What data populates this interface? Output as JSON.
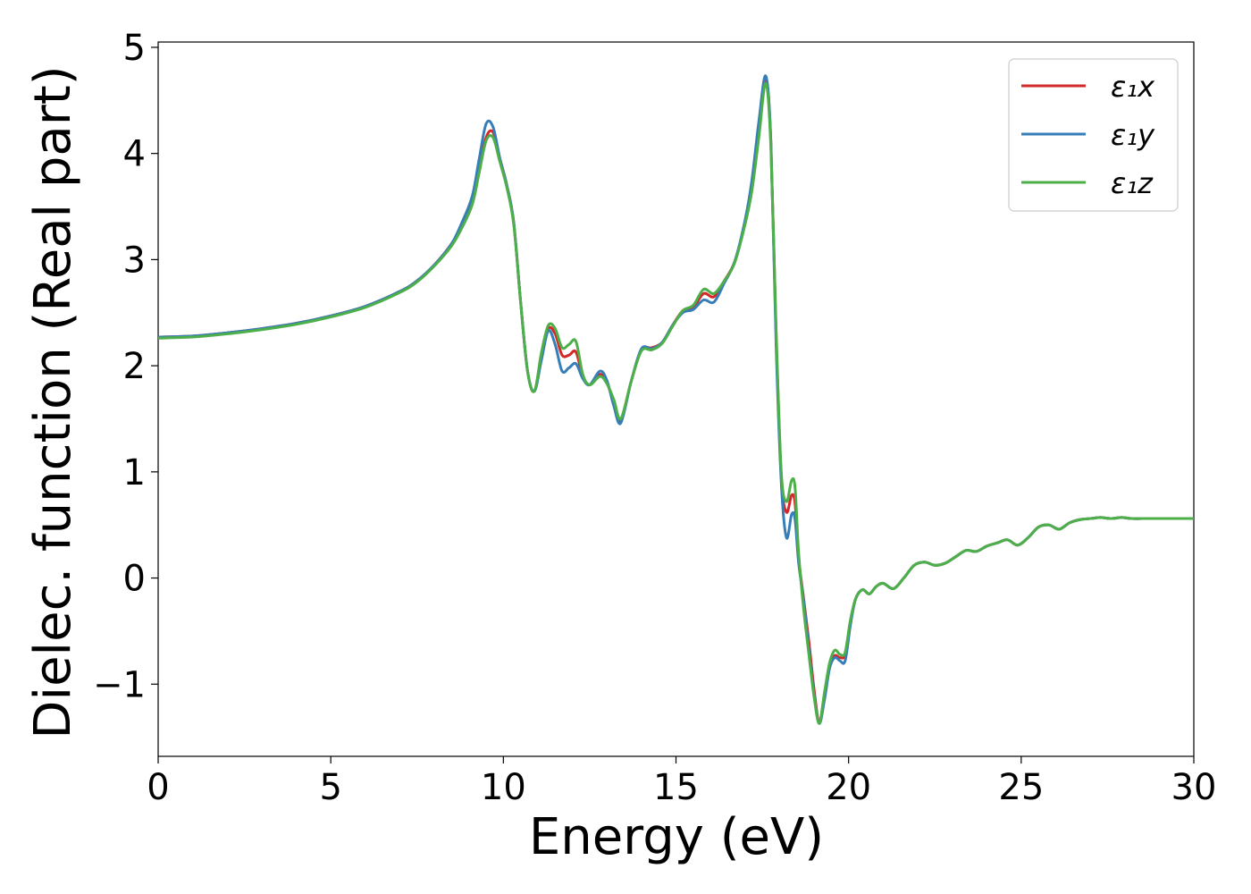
{
  "chart_data": {
    "type": "line",
    "title": "",
    "xlabel": "Energy (eV)",
    "ylabel": "Dielec. function (Real part)",
    "xlim": [
      0,
      30
    ],
    "ylim": [
      -1.68,
      5.05
    ],
    "xticks": [
      0,
      5,
      10,
      15,
      20,
      25,
      30
    ],
    "xtick_labels": [
      "0",
      "5",
      "10",
      "15",
      "20",
      "25",
      "30"
    ],
    "yticks": [
      -1,
      0,
      1,
      2,
      3,
      4,
      5
    ],
    "ytick_labels": [
      "−1",
      "0",
      "1",
      "2",
      "3",
      "4",
      "5"
    ],
    "grid": false,
    "legend_position": "top-right",
    "x": [
      0,
      1,
      2,
      3,
      4,
      5,
      6,
      7,
      7.5,
      8,
      8.5,
      8.8,
      9.1,
      9.3,
      9.5,
      9.7,
      9.9,
      10.1,
      10.3,
      10.5,
      10.7,
      10.9,
      11.1,
      11.3,
      11.5,
      11.7,
      11.9,
      12.1,
      12.3,
      12.5,
      12.8,
      13.0,
      13.2,
      13.4,
      13.7,
      14.0,
      14.3,
      14.6,
      14.9,
      15.2,
      15.5,
      15.8,
      16.1,
      16.4,
      16.7,
      17.0,
      17.2,
      17.4,
      17.6,
      17.75,
      17.9,
      18.05,
      18.2,
      18.35,
      18.45,
      18.55,
      18.7,
      18.85,
      19.0,
      19.15,
      19.3,
      19.45,
      19.6,
      19.75,
      19.9,
      20.05,
      20.2,
      20.4,
      20.6,
      20.8,
      21.0,
      21.3,
      21.6,
      21.9,
      22.2,
      22.5,
      22.8,
      23.1,
      23.4,
      23.7,
      24.0,
      24.3,
      24.6,
      24.9,
      25.2,
      25.5,
      25.8,
      26.1,
      26.4,
      26.7,
      27.0,
      27.3,
      27.6,
      27.9,
      28.2,
      28.5,
      28.8,
      29.1,
      29.4,
      29.7,
      30.0
    ],
    "series": [
      {
        "name": "ε₁x",
        "color": "#d62728",
        "values": [
          2.27,
          2.28,
          2.31,
          2.35,
          2.4,
          2.47,
          2.56,
          2.7,
          2.8,
          2.95,
          3.15,
          3.32,
          3.55,
          3.85,
          4.15,
          4.2,
          3.95,
          3.7,
          3.35,
          2.6,
          1.95,
          1.76,
          2.1,
          2.35,
          2.3,
          2.1,
          2.1,
          2.13,
          1.9,
          1.82,
          1.92,
          1.84,
          1.65,
          1.48,
          1.85,
          2.15,
          2.17,
          2.22,
          2.38,
          2.52,
          2.55,
          2.68,
          2.65,
          2.8,
          2.98,
          3.35,
          3.7,
          4.2,
          4.7,
          4.1,
          2.3,
          0.95,
          0.62,
          0.78,
          0.7,
          0.2,
          -0.2,
          -0.6,
          -1.05,
          -1.36,
          -1.1,
          -0.82,
          -0.73,
          -0.75,
          -0.72,
          -0.42,
          -0.2,
          -0.11,
          -0.15,
          -0.08,
          -0.05,
          -0.1,
          0.0,
          0.12,
          0.15,
          0.12,
          0.14,
          0.2,
          0.26,
          0.25,
          0.3,
          0.33,
          0.36,
          0.31,
          0.38,
          0.48,
          0.5,
          0.46,
          0.52,
          0.55,
          0.56,
          0.57,
          0.56,
          0.57,
          0.56,
          0.56,
          0.56,
          0.56,
          0.56,
          0.56,
          0.56
        ]
      },
      {
        "name": "ε₁y",
        "color": "#377eb8",
        "values": [
          2.27,
          2.28,
          2.31,
          2.35,
          2.4,
          2.47,
          2.56,
          2.7,
          2.8,
          2.95,
          3.15,
          3.35,
          3.6,
          3.95,
          4.28,
          4.25,
          3.95,
          3.7,
          3.35,
          2.6,
          1.95,
          1.76,
          2.05,
          2.33,
          2.2,
          1.95,
          1.98,
          2.02,
          1.88,
          1.82,
          1.95,
          1.86,
          1.62,
          1.46,
          1.85,
          2.16,
          2.16,
          2.22,
          2.38,
          2.5,
          2.53,
          2.62,
          2.6,
          2.78,
          2.98,
          3.37,
          3.75,
          4.3,
          4.73,
          4.1,
          2.2,
          0.9,
          0.38,
          0.6,
          0.55,
          0.15,
          -0.22,
          -0.68,
          -1.1,
          -1.37,
          -1.15,
          -0.85,
          -0.75,
          -0.78,
          -0.78,
          -0.45,
          -0.2,
          -0.11,
          -0.15,
          -0.08,
          -0.05,
          -0.1,
          0.0,
          0.12,
          0.15,
          0.12,
          0.14,
          0.2,
          0.26,
          0.25,
          0.3,
          0.33,
          0.36,
          0.31,
          0.38,
          0.48,
          0.5,
          0.46,
          0.52,
          0.55,
          0.56,
          0.57,
          0.56,
          0.57,
          0.56,
          0.56,
          0.56,
          0.56,
          0.56,
          0.56,
          0.56
        ]
      },
      {
        "name": "ε₁z",
        "color": "#4daf4a",
        "values": [
          2.26,
          2.27,
          2.3,
          2.34,
          2.39,
          2.46,
          2.55,
          2.69,
          2.79,
          2.94,
          3.13,
          3.3,
          3.52,
          3.82,
          4.12,
          4.15,
          3.92,
          3.68,
          3.33,
          2.6,
          1.95,
          1.76,
          2.12,
          2.38,
          2.35,
          2.17,
          2.2,
          2.23,
          1.92,
          1.82,
          1.9,
          1.83,
          1.68,
          1.5,
          1.85,
          2.14,
          2.15,
          2.21,
          2.37,
          2.52,
          2.57,
          2.72,
          2.68,
          2.8,
          2.97,
          3.33,
          3.65,
          4.15,
          4.66,
          4.05,
          2.35,
          1.0,
          0.72,
          0.92,
          0.85,
          0.25,
          -0.3,
          -0.72,
          -1.12,
          -1.37,
          -1.08,
          -0.8,
          -0.68,
          -0.72,
          -0.7,
          -0.4,
          -0.2,
          -0.11,
          -0.15,
          -0.08,
          -0.05,
          -0.1,
          0.0,
          0.12,
          0.15,
          0.12,
          0.14,
          0.2,
          0.26,
          0.25,
          0.3,
          0.33,
          0.36,
          0.31,
          0.38,
          0.48,
          0.5,
          0.46,
          0.52,
          0.55,
          0.56,
          0.57,
          0.56,
          0.57,
          0.56,
          0.56,
          0.56,
          0.56,
          0.56,
          0.56,
          0.56
        ]
      }
    ]
  }
}
